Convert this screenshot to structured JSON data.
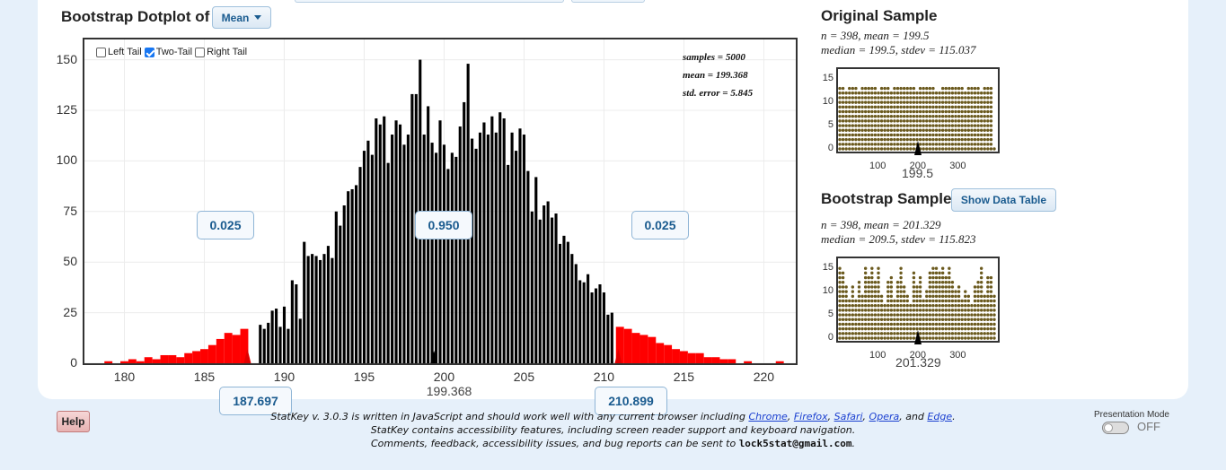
{
  "header": {
    "title": "Bootstrap Dotplot of",
    "statistic_select": "Mean"
  },
  "tail_options": [
    {
      "label": "Left Tail",
      "checked": false
    },
    {
      "label": "Two-Tail",
      "checked": true
    },
    {
      "label": "Right Tail",
      "checked": false
    }
  ],
  "summary": {
    "samples": "samples = 5000",
    "mean": "mean = 199.368",
    "std_error": "std. error = 5.845"
  },
  "proportions": {
    "left": "0.025",
    "middle": "0.950",
    "right": "0.025"
  },
  "cutoffs": {
    "lower": "187.697",
    "upper": "210.899"
  },
  "center_label": "199.368",
  "colors": {
    "tail": "#ff0000",
    "bars": "#000000",
    "dots": "#6b5a1e",
    "accent": "#1a5b8f"
  },
  "chart_data": {
    "type": "bar",
    "xlim": [
      177.5,
      222
    ],
    "ylim": [
      0,
      160
    ],
    "xticks": [
      180,
      185,
      190,
      195,
      200,
      205,
      210,
      215,
      220
    ],
    "yticks": [
      0,
      25,
      50,
      75,
      100,
      125,
      150
    ],
    "bin_width": 0.25,
    "lower_cutoff": 187.697,
    "upper_cutoff": 210.899,
    "mean": 199.368,
    "x": [
      188.5,
      188.75,
      189,
      189.25,
      189.5,
      189.75,
      190,
      190.25,
      190.5,
      190.75,
      191,
      191.25,
      191.5,
      191.75,
      192,
      192.25,
      192.5,
      192.75,
      193,
      193.25,
      193.5,
      193.75,
      194,
      194.25,
      194.5,
      194.75,
      195,
      195.25,
      195.5,
      195.75,
      196,
      196.25,
      196.5,
      196.75,
      197,
      197.25,
      197.5,
      197.75,
      198,
      198.25,
      198.5,
      198.75,
      199,
      199.25,
      199.5,
      199.75,
      200,
      200.25,
      200.5,
      200.75,
      201,
      201.25,
      201.5,
      201.75,
      202,
      202.25,
      202.5,
      202.75,
      203,
      203.25,
      203.5,
      203.75,
      204,
      204.25,
      204.5,
      204.75,
      205,
      205.25,
      205.5,
      205.75,
      206,
      206.25,
      206.5,
      206.75,
      207,
      207.25,
      207.5,
      207.75,
      208,
      208.25,
      208.5,
      208.75,
      209,
      209.25,
      209.5,
      209.75,
      210,
      210.25,
      210.5
    ],
    "y": [
      19,
      17,
      20,
      26,
      27,
      18,
      28,
      17,
      41,
      39,
      22,
      60,
      53,
      54,
      53,
      51,
      54,
      58,
      52,
      75,
      68,
      78,
      85,
      86,
      88,
      97,
      105,
      110,
      103,
      121,
      118,
      122,
      99,
      113,
      120,
      118,
      108,
      113,
      133,
      133,
      150,
      113,
      127,
      109,
      104,
      120,
      108,
      96,
      104,
      102,
      117,
      129,
      148,
      111,
      106,
      114,
      119,
      113,
      122,
      114,
      124,
      121,
      98,
      114,
      105,
      116,
      113,
      95,
      75,
      92,
      71,
      78,
      80,
      72,
      74,
      59,
      63,
      60,
      54,
      49,
      41,
      40,
      44,
      35,
      37,
      39,
      35,
      24,
      25
    ],
    "left_tail_x": [
      179,
      180,
      180.5,
      181,
      181.5,
      182,
      182.5,
      183,
      183.5,
      184,
      184.5,
      185,
      185.5,
      186,
      186.5,
      187,
      187.5
    ],
    "left_tail_y": [
      1,
      1,
      2,
      1,
      3,
      2,
      4,
      4,
      3,
      5,
      6,
      7,
      9,
      12,
      15,
      14,
      17
    ],
    "right_tail_x": [
      211,
      211.5,
      212,
      212.5,
      213,
      213.5,
      214,
      214.5,
      215,
      215.5,
      216,
      216.5,
      217,
      217.5,
      218,
      219,
      221
    ],
    "right_tail_y": [
      18,
      17,
      15,
      14,
      13,
      10,
      9,
      7,
      6,
      5,
      5,
      3,
      3,
      2,
      2,
      1,
      1
    ]
  },
  "original_sample": {
    "title": "Original Sample",
    "line1": "n = 398, mean = 199.5",
    "line2": "median = 199.5, stdev = 115.037",
    "center_label": "199.5",
    "xticks": [
      "100",
      "200",
      "300"
    ],
    "yticks": [
      "0",
      "5",
      "10",
      "15"
    ],
    "xlim": [
      1,
      400
    ],
    "ylim": [
      0,
      16
    ],
    "columns": [
      14,
      14,
      13,
      14,
      14,
      14,
      13,
      14,
      14,
      14,
      14,
      14,
      13,
      14,
      14,
      14,
      13,
      14,
      14,
      14,
      14,
      14,
      14,
      14,
      13,
      14,
      14,
      14,
      14,
      14,
      13,
      13,
      14,
      14,
      14,
      14,
      14,
      14,
      14,
      13,
      14,
      14,
      14,
      14,
      13,
      14,
      14,
      14,
      1
    ]
  },
  "bootstrap_sample": {
    "title": "Bootstrap Sample",
    "button": "Show Data Table",
    "line1": "n = 398, mean = 201.329",
    "line2": "median = 209.5, stdev = 115.823",
    "center_label": "201.329",
    "xticks": [
      "100",
      "200",
      "300"
    ],
    "yticks": [
      "0",
      "5",
      "10",
      "15"
    ],
    "xlim": [
      1,
      400
    ],
    "ylim": [
      0,
      16
    ],
    "columns": [
      16,
      15,
      12,
      9,
      12,
      9,
      13,
      10,
      16,
      14,
      16,
      13,
      16,
      10,
      8,
      13,
      14,
      9,
      13,
      16,
      12,
      10,
      8,
      15,
      12,
      14,
      9,
      11,
      15,
      16,
      16,
      15,
      16,
      14,
      16,
      13,
      11,
      12,
      9,
      11,
      10,
      8,
      12,
      13,
      16,
      10,
      14,
      14,
      10
    ]
  },
  "footer": {
    "line1_prefix": "StatKey v. 3.0.3 is written in JavaScript and should work well with any current browser including",
    "browsers": [
      "Chrome",
      "Firefox",
      "Safari",
      "Opera",
      "Edge"
    ],
    "comma": ",",
    "and": "and",
    "period": ".",
    "line2": "StatKey contains accessibility features, including screen reader support and keyboard navigation.",
    "line3_prefix": "Comments, feedback, accessibility issues, and bug reports can be sent to",
    "email": "lock5stat@gmail.com",
    "help": "Help",
    "presentation_mode": "Presentation Mode",
    "toggle_state": "OFF"
  }
}
